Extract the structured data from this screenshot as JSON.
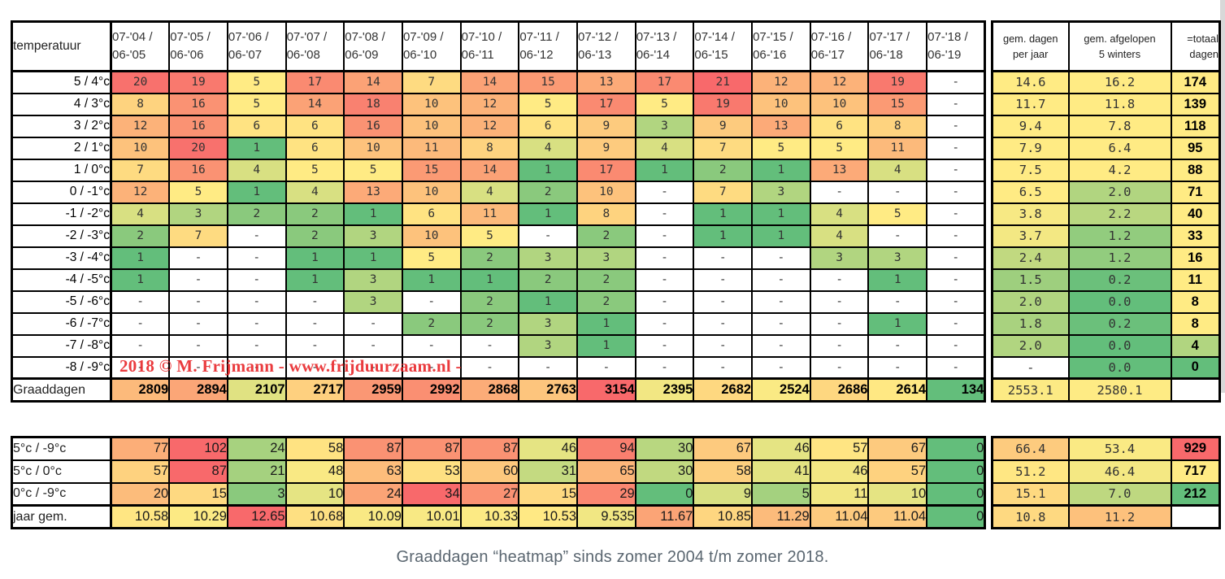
{
  "caption": "Graaddagen “heatmap” sinds zomer 2004 t/m zomer 2018.",
  "watermark": "2018 © M. Frijmann - www.frijduurzaam.nl -",
  "colors": {
    "scale_green": "#63BE7B",
    "scale_yellow": "#FFEB84",
    "scale_red": "#F8696B",
    "empty_cell": "#FFFFFF",
    "border": "#000000",
    "watermark_red": "#E82024",
    "caption_gray": "#5A6670",
    "header_text": "#333333"
  },
  "chart_data": {
    "type": "heatmap",
    "title": "Graaddagen “heatmap” sinds zomer 2004 t/m zomer 2018.",
    "corner_label": "temperatuur",
    "year_columns": [
      {
        "l1": "07-'04 /",
        "l2": "06-'05"
      },
      {
        "l1": "07-'05 /",
        "l2": "06-'06"
      },
      {
        "l1": "07-'06 /",
        "l2": "06-'07"
      },
      {
        "l1": "07-'07 /",
        "l2": "06-'08"
      },
      {
        "l1": "07-'08 /",
        "l2": "06-'09"
      },
      {
        "l1": "07-'09 /",
        "l2": "06-'10"
      },
      {
        "l1": "07-'10 /",
        "l2": "06-'11"
      },
      {
        "l1": "07-'11 /",
        "l2": "06-'12"
      },
      {
        "l1": "07-'12 /",
        "l2": "06-'13"
      },
      {
        "l1": "07-'13 /",
        "l2": "06-'14"
      },
      {
        "l1": "07-'14 /",
        "l2": "06-'15"
      },
      {
        "l1": "07-'15 /",
        "l2": "06-'16"
      },
      {
        "l1": "07-'16 /",
        "l2": "06-'17"
      },
      {
        "l1": "07-'17 /",
        "l2": "06-'18"
      },
      {
        "l1": "07-'18 /",
        "l2": "06-'19"
      }
    ],
    "summary_columns": [
      {
        "l1": "gem. dagen",
        "l2": "per jaar"
      },
      {
        "l1": "gem. afgelopen",
        "l2": "5 winters"
      },
      {
        "l1": "=totaal",
        "l2": "dagen"
      }
    ],
    "temp_rows": [
      {
        "label": "5 / 4°c",
        "values": [
          "20",
          "19",
          "5",
          "17",
          "14",
          "7",
          "14",
          "15",
          "13",
          "17",
          "21",
          "12",
          "12",
          "19",
          "-"
        ],
        "avg_year": "14.6",
        "avg_5w": "16.2",
        "total": "174"
      },
      {
        "label": "4 / 3°c",
        "values": [
          "8",
          "16",
          "5",
          "14",
          "18",
          "10",
          "12",
          "5",
          "17",
          "5",
          "19",
          "10",
          "10",
          "15",
          "-"
        ],
        "avg_year": "11.7",
        "avg_5w": "11.8",
        "total": "139"
      },
      {
        "label": "3 / 2°c",
        "values": [
          "12",
          "16",
          "6",
          "6",
          "16",
          "10",
          "12",
          "6",
          "9",
          "3",
          "9",
          "13",
          "6",
          "8",
          "-"
        ],
        "avg_year": "9.4",
        "avg_5w": "7.8",
        "total": "118"
      },
      {
        "label": "2 / 1°c",
        "values": [
          "10",
          "20",
          "1",
          "6",
          "10",
          "11",
          "8",
          "4",
          "9",
          "4",
          "7",
          "5",
          "5",
          "11",
          "-"
        ],
        "avg_year": "7.9",
        "avg_5w": "6.4",
        "total": "95"
      },
      {
        "label": "1 / 0°c",
        "values": [
          "7",
          "16",
          "4",
          "5",
          "5",
          "15",
          "14",
          "1",
          "17",
          "1",
          "2",
          "1",
          "13",
          "4",
          "-"
        ],
        "avg_year": "7.5",
        "avg_5w": "4.2",
        "total": "88"
      },
      {
        "label": "0 / -1°c",
        "values": [
          "12",
          "5",
          "1",
          "4",
          "13",
          "10",
          "4",
          "2",
          "10",
          "-",
          "7",
          "3",
          "-",
          "-",
          "-"
        ],
        "avg_year": "6.5",
        "avg_5w": "2.0",
        "total": "71"
      },
      {
        "label": "-1 / -2°c",
        "values": [
          "4",
          "3",
          "2",
          "2",
          "1",
          "6",
          "11",
          "1",
          "8",
          "-",
          "1",
          "1",
          "4",
          "5",
          "-"
        ],
        "avg_year": "3.8",
        "avg_5w": "2.2",
        "total": "40"
      },
      {
        "label": "-2 / -3°c",
        "values": [
          "2",
          "7",
          "-",
          "2",
          "3",
          "10",
          "5",
          "-",
          "2",
          "-",
          "1",
          "1",
          "4",
          "-",
          "-"
        ],
        "avg_year": "3.7",
        "avg_5w": "1.2",
        "total": "33"
      },
      {
        "label": "-3 / -4°c",
        "values": [
          "1",
          "-",
          "-",
          "1",
          "1",
          "5",
          "2",
          "3",
          "3",
          "-",
          "-",
          "-",
          "3",
          "3",
          "-"
        ],
        "avg_year": "2.4",
        "avg_5w": "1.2",
        "total": "16"
      },
      {
        "label": "-4 / -5°c",
        "values": [
          "1",
          "-",
          "-",
          "1",
          "3",
          "1",
          "1",
          "2",
          "2",
          "-",
          "-",
          "-",
          "-",
          "1",
          "-"
        ],
        "avg_year": "1.5",
        "avg_5w": "0.2",
        "total": "11"
      },
      {
        "label": "-5 / -6°c",
        "values": [
          "-",
          "-",
          "-",
          "-",
          "3",
          "-",
          "2",
          "1",
          "2",
          "-",
          "-",
          "-",
          "-",
          "-",
          "-"
        ],
        "avg_year": "2.0",
        "avg_5w": "0.0",
        "total": "8"
      },
      {
        "label": "-6 / -7°c",
        "values": [
          "-",
          "-",
          "-",
          "-",
          "-",
          "2",
          "2",
          "3",
          "1",
          "-",
          "-",
          "-",
          "-",
          "1",
          "-"
        ],
        "avg_year": "1.8",
        "avg_5w": "0.2",
        "total": "8"
      },
      {
        "label": "-7 / -8°c",
        "values": [
          "-",
          "-",
          "-",
          "-",
          "-",
          "-",
          "-",
          "3",
          "1",
          "-",
          "-",
          "-",
          "-",
          "-",
          "-"
        ],
        "avg_year": "2.0",
        "avg_5w": "0.0",
        "total": "4"
      },
      {
        "label": "-8 / -9°c",
        "values": [
          "-",
          "-",
          "-",
          "-",
          "-",
          "-",
          "-",
          "-",
          "-",
          "-",
          "-",
          "-",
          "-",
          "-",
          "-"
        ],
        "avg_year": "-",
        "avg_5w": "0.0",
        "total": "0"
      }
    ],
    "graaddagen_row": {
      "label": "Graaddagen",
      "values": [
        "2809",
        "2894",
        "2107",
        "2717",
        "2959",
        "2992",
        "2868",
        "2763",
        "3154",
        "2395",
        "2682",
        "2524",
        "2686",
        "2614",
        "134"
      ],
      "avg_year": "2553.1",
      "avg_5w": "2580.1",
      "total": ""
    },
    "bottom_rows": [
      {
        "label": "5°c / -9°c",
        "values": [
          "77",
          "102",
          "24",
          "58",
          "87",
          "87",
          "87",
          "46",
          "94",
          "30",
          "67",
          "46",
          "57",
          "67",
          "0"
        ],
        "avg_year": "66.4",
        "avg_5w": "53.4",
        "total": "929"
      },
      {
        "label": "5°c /  0°c",
        "values": [
          "57",
          "87",
          "21",
          "48",
          "63",
          "53",
          "60",
          "31",
          "65",
          "30",
          "58",
          "41",
          "46",
          "57",
          "0"
        ],
        "avg_year": "51.2",
        "avg_5w": "46.4",
        "total": "717"
      },
      {
        "label": "0°c / -9°c",
        "values": [
          "20",
          "15",
          "3",
          "10",
          "24",
          "34",
          "27",
          "15",
          "29",
          "0",
          "9",
          "5",
          "11",
          "10",
          "0"
        ],
        "avg_year": "15.1",
        "avg_5w": "7.0",
        "total": "212"
      },
      {
        "label": "jaar gem.",
        "values": [
          "10.58",
          "10.29",
          "12.65",
          "10.68",
          "10.09",
          "10.01",
          "10.33",
          "10.53",
          "9.535",
          "11.67",
          "10.85",
          "11.29",
          "11.04",
          "11.04",
          "0"
        ],
        "avg_year": "10.8",
        "avg_5w": "11.2",
        "total": ""
      }
    ],
    "scales": {
      "counts": {
        "min": 1,
        "mid": 5,
        "max": 21
      },
      "avg_top": {
        "min": 0,
        "mid": 4,
        "cap": true
      },
      "total_top": {
        "min": 0,
        "mid": 8,
        "cap": true
      },
      "graaddagen": {
        "min": 134,
        "mid": 2600,
        "max": 3154
      },
      "bottom": [
        {
          "min": 0,
          "mid": 55,
          "max": 102
        },
        {
          "min": 0,
          "mid": 50,
          "max": 87
        },
        {
          "min": 0,
          "mid": 12,
          "max": 34
        },
        {
          "min": 0,
          "mid": 10.5,
          "max": 12.65
        }
      ],
      "total_bottom": {
        "min": 212,
        "mid": 717,
        "max": 929
      }
    }
  }
}
